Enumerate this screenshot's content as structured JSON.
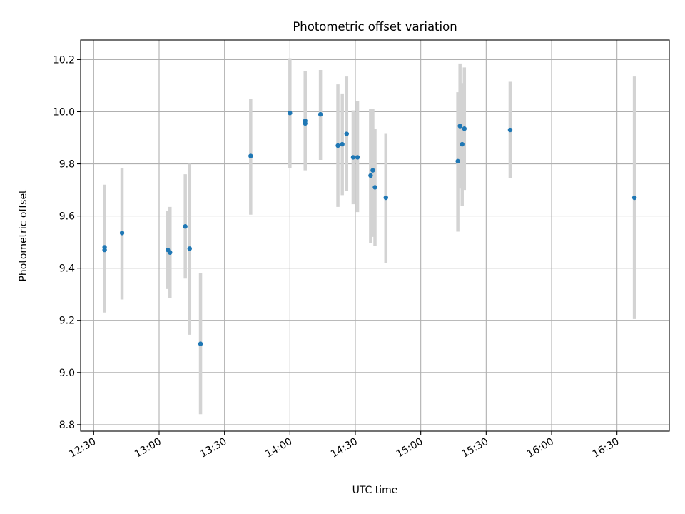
{
  "chart_data": {
    "type": "scatter",
    "title": "Photometric offset variation",
    "xlabel": "UTC time",
    "ylabel": "Photometric offset",
    "x_axis_type": "time",
    "xlim": [
      "12:24",
      "16:54"
    ],
    "ylim": [
      8.775,
      10.275
    ],
    "grid": true,
    "x_ticks": [
      "12:30",
      "13:00",
      "13:30",
      "14:00",
      "14:30",
      "15:00",
      "15:30",
      "16:00",
      "16:30"
    ],
    "y_ticks": [
      "8.8",
      "9.0",
      "9.2",
      "9.4",
      "9.6",
      "9.8",
      "10.0",
      "10.2"
    ],
    "colors": {
      "marker": "#1f77b4",
      "errorbar": "#d3d3d3",
      "grid": "#b0b0b0"
    },
    "series": [
      {
        "points": [
          {
            "x": "12:35",
            "y": 9.47,
            "ylow": 9.23,
            "yhigh": 9.71
          },
          {
            "x": "12:35",
            "y": 9.48,
            "ylow": 9.24,
            "yhigh": 9.72
          },
          {
            "x": "12:43",
            "y": 9.535,
            "ylow": 9.28,
            "yhigh": 9.785
          },
          {
            "x": "13:04",
            "y": 9.47,
            "ylow": 9.32,
            "yhigh": 9.62
          },
          {
            "x": "13:05",
            "y": 9.46,
            "ylow": 9.285,
            "yhigh": 9.635
          },
          {
            "x": "13:12",
            "y": 9.56,
            "ylow": 9.36,
            "yhigh": 9.76
          },
          {
            "x": "13:14",
            "y": 9.475,
            "ylow": 9.145,
            "yhigh": 9.8
          },
          {
            "x": "13:19",
            "y": 9.11,
            "ylow": 8.84,
            "yhigh": 9.38
          },
          {
            "x": "13:42",
            "y": 9.83,
            "ylow": 9.605,
            "yhigh": 10.05
          },
          {
            "x": "14:00",
            "y": 9.995,
            "ylow": 9.785,
            "yhigh": 10.205
          },
          {
            "x": "14:07",
            "y": 9.955,
            "ylow": 9.785,
            "yhigh": 10.125
          },
          {
            "x": "14:07",
            "y": 9.965,
            "ylow": 9.775,
            "yhigh": 10.155
          },
          {
            "x": "14:14",
            "y": 9.99,
            "ylow": 9.815,
            "yhigh": 10.16
          },
          {
            "x": "14:22",
            "y": 9.87,
            "ylow": 9.635,
            "yhigh": 10.105
          },
          {
            "x": "14:24",
            "y": 9.875,
            "ylow": 9.68,
            "yhigh": 10.07
          },
          {
            "x": "14:26",
            "y": 9.915,
            "ylow": 9.695,
            "yhigh": 10.135
          },
          {
            "x": "14:29",
            "y": 9.825,
            "ylow": 9.645,
            "yhigh": 10.005
          },
          {
            "x": "14:31",
            "y": 9.825,
            "ylow": 9.615,
            "yhigh": 10.04
          },
          {
            "x": "14:37",
            "y": 9.755,
            "ylow": 9.495,
            "yhigh": 10.01
          },
          {
            "x": "14:38",
            "y": 9.775,
            "ylow": 9.52,
            "yhigh": 10.01
          },
          {
            "x": "14:39",
            "y": 9.71,
            "ylow": 9.485,
            "yhigh": 9.935
          },
          {
            "x": "14:44",
            "y": 9.67,
            "ylow": 9.42,
            "yhigh": 9.915
          },
          {
            "x": "15:17",
            "y": 9.81,
            "ylow": 9.54,
            "yhigh": 10.075
          },
          {
            "x": "15:18",
            "y": 9.945,
            "ylow": 9.705,
            "yhigh": 10.185
          },
          {
            "x": "15:19",
            "y": 9.875,
            "ylow": 9.64,
            "yhigh": 10.11
          },
          {
            "x": "15:20",
            "y": 9.935,
            "ylow": 9.7,
            "yhigh": 10.17
          },
          {
            "x": "15:41",
            "y": 9.93,
            "ylow": 9.745,
            "yhigh": 10.115
          },
          {
            "x": "16:38",
            "y": 9.67,
            "ylow": 9.205,
            "yhigh": 10.135
          }
        ]
      }
    ]
  }
}
